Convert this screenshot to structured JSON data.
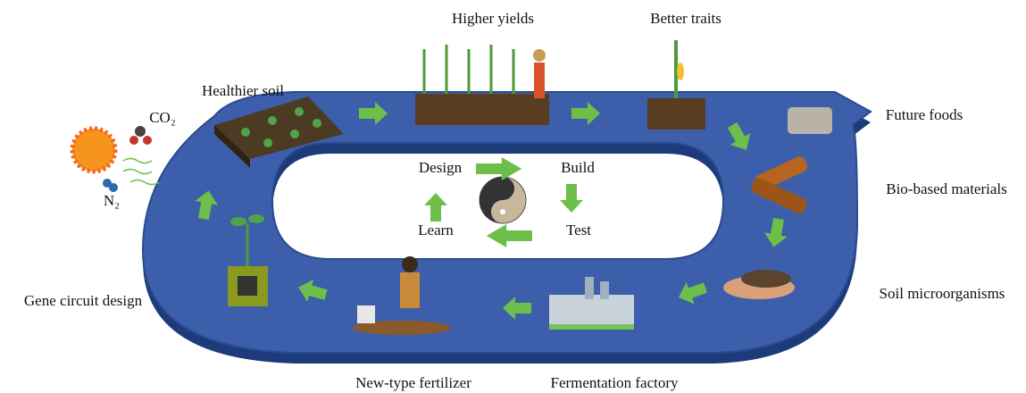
{
  "title_nodes": [
    {
      "label": "Higher yields"
    },
    {
      "label": "Better traits"
    },
    {
      "label": "Healthier soil"
    },
    {
      "label": "Future foods"
    },
    {
      "label": "Bio-based materials"
    },
    {
      "label": "Soil microorganisms"
    },
    {
      "label": "Gene circuit design"
    },
    {
      "label": "New-type fertilizer"
    },
    {
      "label": "Fermentation factory"
    }
  ],
  "cycle": [
    "Design",
    "Build",
    "Test",
    "Learn"
  ],
  "molecules": [
    "CO₂",
    "N₂"
  ]
}
